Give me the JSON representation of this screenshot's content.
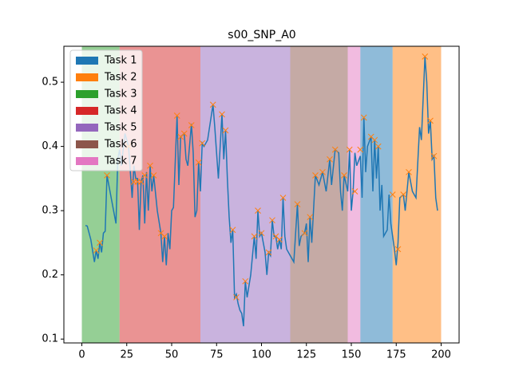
{
  "chart_data": {
    "type": "line",
    "title": "s00_SNP_A0",
    "xlim": [
      -10,
      210
    ],
    "ylim": [
      0.094,
      0.556
    ],
    "xticks": [
      0,
      25,
      50,
      75,
      100,
      125,
      150,
      175,
      200
    ],
    "yticks": [
      0.1,
      0.2,
      0.3,
      0.4,
      0.5
    ],
    "legend": "upper left",
    "regions": [
      {
        "name": "Task 1",
        "color": "#1f77b4",
        "start": 155,
        "end": 173
      },
      {
        "name": "Task 2",
        "color": "#ff7f0e",
        "start": 173,
        "end": 200
      },
      {
        "name": "Task 3",
        "color": "#2ca02c",
        "start": 0,
        "end": 21
      },
      {
        "name": "Task 4",
        "color": "#d62728",
        "start": 21,
        "end": 66
      },
      {
        "name": "Task 5",
        "color": "#9467bd",
        "start": 66,
        "end": 116
      },
      {
        "name": "Task 6",
        "color": "#8c564b",
        "start": 116,
        "end": 148
      },
      {
        "name": "Task 7",
        "color": "#e377c2",
        "start": 148,
        "end": 155
      }
    ],
    "series": [
      {
        "color": "#1f77b4",
        "x": [
          2,
          3,
          5,
          7,
          8,
          9,
          10,
          11,
          12,
          13,
          14,
          15,
          17,
          19,
          20,
          21,
          22,
          24,
          26,
          27,
          28,
          29,
          30,
          31,
          32,
          33,
          34,
          35,
          36,
          37,
          38,
          39,
          40,
          42,
          44,
          45,
          46,
          47,
          48,
          49,
          50,
          51,
          53,
          54,
          55,
          57,
          58,
          59,
          61,
          62,
          63,
          64,
          65,
          66,
          67,
          68,
          70,
          73,
          74,
          75,
          76,
          78,
          79,
          80,
          81,
          82,
          83,
          84,
          85,
          86,
          87,
          88,
          89,
          90,
          91,
          92,
          94,
          96,
          97,
          98,
          99,
          100,
          101,
          102,
          103,
          104,
          105,
          106,
          107,
          108,
          109,
          110,
          111,
          112,
          113,
          114,
          116,
          118,
          120,
          121,
          122,
          124,
          125,
          126,
          127,
          128,
          130,
          132,
          134,
          136,
          138,
          139,
          141,
          143,
          144,
          145,
          146,
          148,
          149,
          150,
          151,
          152,
          153,
          155,
          156,
          157,
          158,
          159,
          161,
          162,
          163,
          164,
          165,
          166,
          167,
          168,
          170,
          171,
          172,
          174,
          175,
          176,
          177,
          179,
          180,
          182,
          184,
          186,
          188,
          189,
          191,
          192,
          193,
          194,
          195,
          196,
          197,
          198
        ],
        "values": [
          0.277,
          0.276,
          0.255,
          0.22,
          0.238,
          0.225,
          0.25,
          0.235,
          0.265,
          0.268,
          0.355,
          0.34,
          0.31,
          0.28,
          0.38,
          0.395,
          0.37,
          0.42,
          0.4,
          0.36,
          0.32,
          0.37,
          0.35,
          0.35,
          0.27,
          0.345,
          0.355,
          0.28,
          0.36,
          0.3,
          0.37,
          0.33,
          0.355,
          0.3,
          0.265,
          0.22,
          0.26,
          0.215,
          0.265,
          0.24,
          0.3,
          0.305,
          0.448,
          0.34,
          0.415,
          0.42,
          0.38,
          0.37,
          0.435,
          0.39,
          0.29,
          0.3,
          0.375,
          0.33,
          0.405,
          0.4,
          0.41,
          0.465,
          0.43,
          0.39,
          0.35,
          0.45,
          0.38,
          0.425,
          0.35,
          0.29,
          0.25,
          0.27,
          0.165,
          0.17,
          0.155,
          0.145,
          0.14,
          0.12,
          0.19,
          0.165,
          0.2,
          0.26,
          0.225,
          0.3,
          0.26,
          0.265,
          0.25,
          0.235,
          0.2,
          0.235,
          0.23,
          0.285,
          0.26,
          0.26,
          0.24,
          0.255,
          0.24,
          0.32,
          0.26,
          0.24,
          0.23,
          0.22,
          0.31,
          0.245,
          0.26,
          0.265,
          0.28,
          0.22,
          0.29,
          0.25,
          0.355,
          0.34,
          0.36,
          0.33,
          0.38,
          0.34,
          0.395,
          0.39,
          0.33,
          0.3,
          0.355,
          0.33,
          0.395,
          0.3,
          0.33,
          0.39,
          0.37,
          0.385,
          0.32,
          0.445,
          0.36,
          0.4,
          0.415,
          0.33,
          0.41,
          0.35,
          0.4,
          0.3,
          0.34,
          0.26,
          0.27,
          0.325,
          0.28,
          0.24,
          0.215,
          0.25,
          0.32,
          0.325,
          0.3,
          0.36,
          0.33,
          0.32,
          0.43,
          0.41,
          0.54,
          0.5,
          0.42,
          0.44,
          0.38,
          0.385,
          0.32,
          0.3
        ]
      },
      {
        "color": "#ff7f0e",
        "marker": "x",
        "x": [
          8,
          10,
          14,
          26,
          29,
          31,
          33,
          35,
          38,
          40,
          44,
          46,
          53,
          55,
          57,
          61,
          65,
          67,
          73,
          78,
          80,
          84,
          86,
          91,
          96,
          98,
          100,
          104,
          106,
          108,
          110,
          112,
          120,
          124,
          127,
          130,
          134,
          138,
          141,
          146,
          149,
          152,
          155,
          157,
          161,
          163,
          165,
          173,
          176,
          179,
          182,
          191,
          194,
          196
        ],
        "values": [
          0.238,
          0.25,
          0.355,
          0.4,
          0.345,
          0.345,
          0.345,
          0.355,
          0.37,
          0.355,
          0.265,
          0.26,
          0.448,
          0.415,
          0.42,
          0.433,
          0.375,
          0.405,
          0.465,
          0.45,
          0.425,
          0.27,
          0.165,
          0.19,
          0.26,
          0.3,
          0.265,
          0.235,
          0.285,
          0.26,
          0.255,
          0.32,
          0.31,
          0.265,
          0.29,
          0.355,
          0.36,
          0.38,
          0.395,
          0.355,
          0.395,
          0.33,
          0.395,
          0.445,
          0.415,
          0.41,
          0.4,
          0.325,
          0.24,
          0.325,
          0.36,
          0.54,
          0.44,
          0.385
        ]
      }
    ]
  }
}
